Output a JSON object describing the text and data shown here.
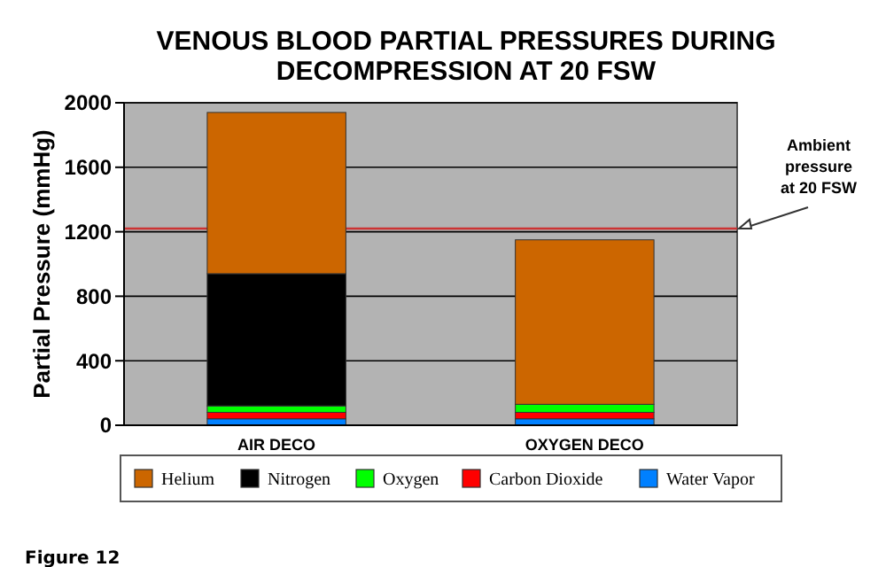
{
  "chart_data": {
    "type": "bar",
    "title": "VENOUS BLOOD PARTIAL PRESSURES DURING DECOMPRESSION AT 20 FSW",
    "ylabel": "Partial Pressure (mmHg)",
    "categories": [
      "AIR DECO",
      "OXYGEN DECO"
    ],
    "stacked": true,
    "series": [
      {
        "name": "Water Vapor",
        "color": "#0080ff",
        "values": [
          40,
          40
        ]
      },
      {
        "name": "Carbon Dioxide",
        "color": "#ff0000",
        "values": [
          40,
          40
        ]
      },
      {
        "name": "Oxygen",
        "color": "#00ff00",
        "values": [
          40,
          50
        ]
      },
      {
        "name": "Nitrogen",
        "color": "#000000",
        "values": [
          820,
          0
        ]
      },
      {
        "name": "Helium",
        "color": "#cc6600",
        "values": [
          1000,
          1020
        ]
      }
    ],
    "ylim": [
      0,
      2000
    ],
    "yticks": [
      0,
      400,
      800,
      1200,
      1600,
      2000
    ],
    "grid": "y",
    "legend": "bottom",
    "ref_lines": [
      {
        "axis": "y",
        "value": 1220,
        "label": "Ambient pressure at 20 FSW",
        "color": "#cc3333"
      }
    ],
    "annotations": [
      "Figure 12"
    ]
  }
}
